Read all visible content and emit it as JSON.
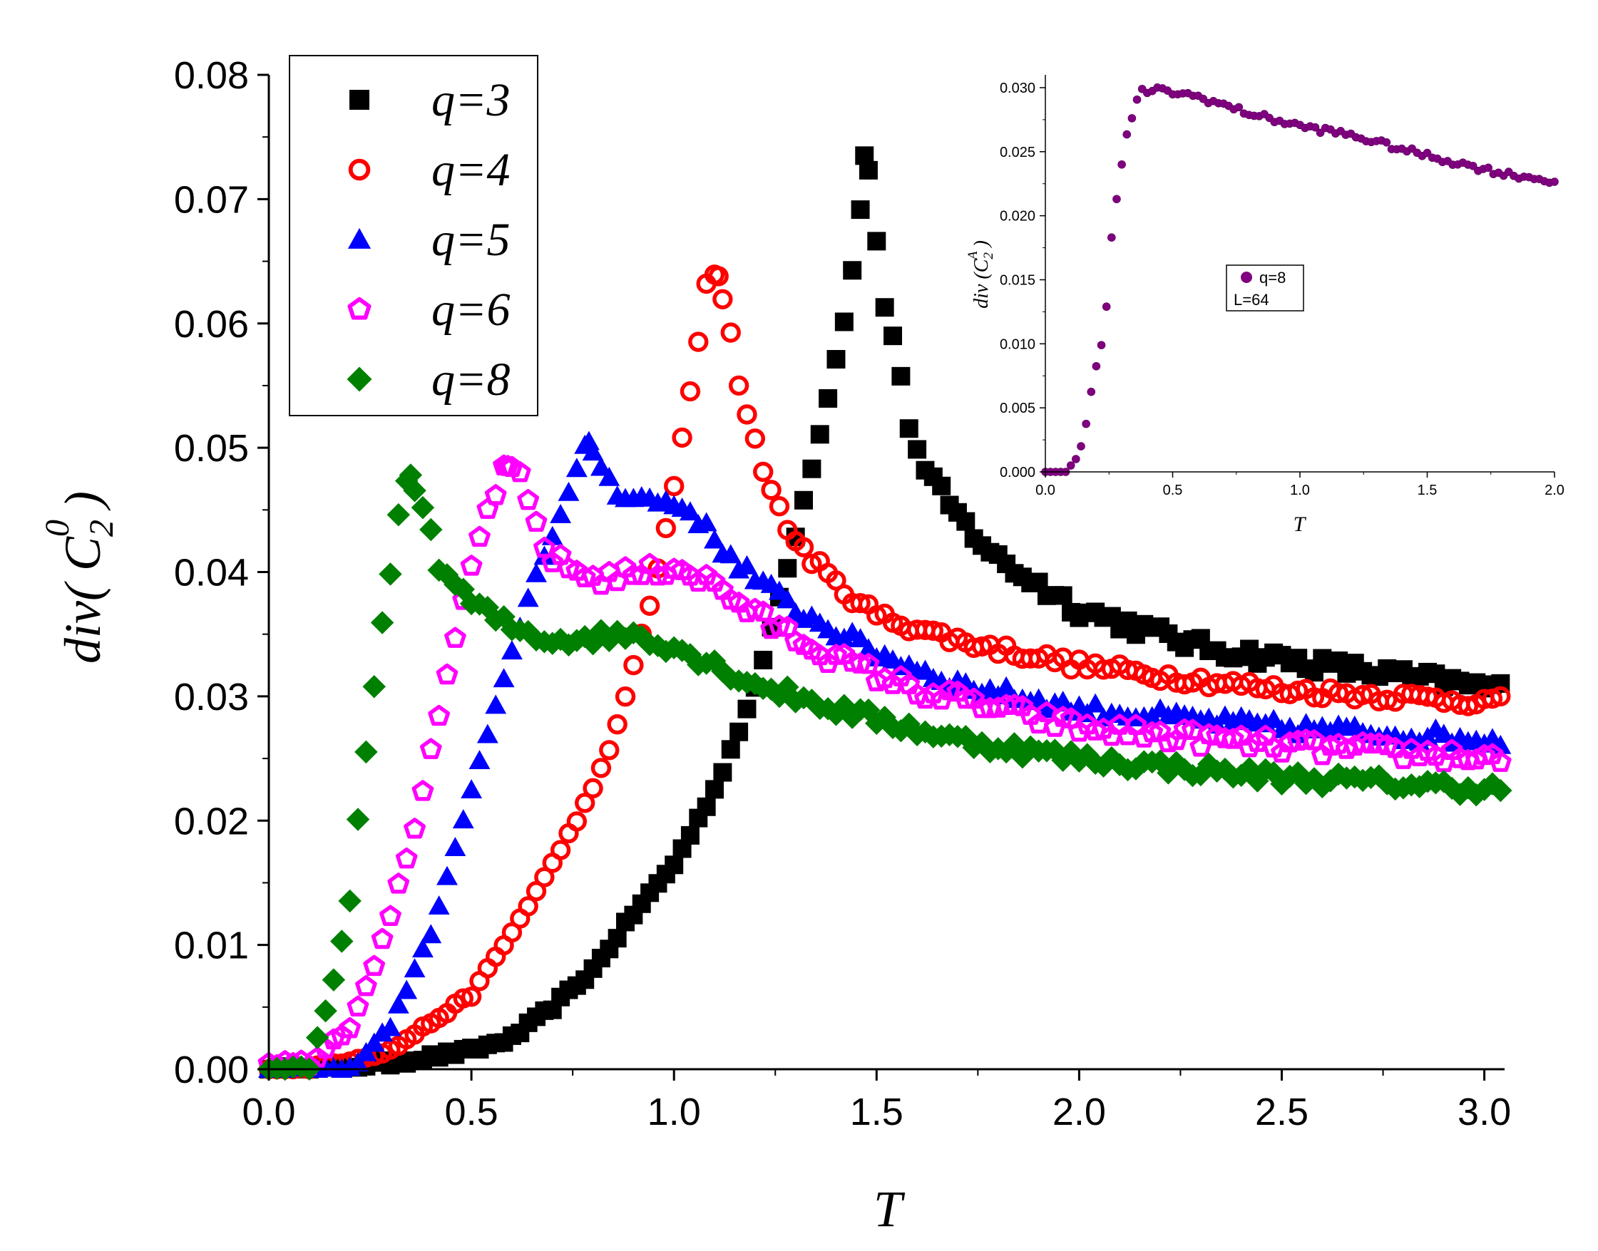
{
  "chart_data": [
    {
      "type": "scatter",
      "xlabel": "T",
      "ylabel": "div( C 2 0 )",
      "ylabel_parts": {
        "base": "div( C",
        "subscript": "2",
        "superscript": "0",
        "close": ")"
      },
      "xlim": [
        0.0,
        3.05
      ],
      "ylim": [
        0.0,
        0.08
      ],
      "xticks": [
        "0.0",
        "0.5",
        "1.0",
        "1.5",
        "2.0",
        "2.5",
        "3.0"
      ],
      "yticks": [
        "0.00",
        "0.01",
        "0.02",
        "0.03",
        "0.04",
        "0.05",
        "0.06",
        "0.07",
        "0.08"
      ],
      "legend_position": "top-left",
      "series": [
        {
          "name": "q=3",
          "label": "q=3",
          "marker": "square",
          "color": "#000000",
          "peak_x": 1.47,
          "peak_y": 0.0735,
          "left_points": [
            [
              0.0,
              0.0
            ],
            [
              0.1,
              0.0
            ],
            [
              0.3,
              0.0005
            ],
            [
              0.5,
              0.0015
            ],
            [
              0.6,
              0.0025
            ],
            [
              0.7,
              0.005
            ],
            [
              0.8,
              0.008
            ],
            [
              0.9,
              0.0125
            ],
            [
              1.0,
              0.0165
            ],
            [
              1.1,
              0.0225
            ],
            [
              1.2,
              0.0305
            ],
            [
              1.3,
              0.043
            ],
            [
              1.38,
              0.054
            ],
            [
              1.42,
              0.0605
            ],
            [
              1.45,
              0.066
            ]
          ],
          "right_points": [
            [
              1.49,
              0.0705
            ],
            [
              1.51,
              0.0625
            ],
            [
              1.54,
              0.0593
            ],
            [
              1.56,
              0.0552
            ],
            [
              1.58,
              0.052
            ],
            [
              1.62,
              0.048
            ],
            [
              1.7,
              0.0445
            ],
            [
              1.8,
              0.041
            ],
            [
              2.0,
              0.037
            ],
            [
              2.3,
              0.034
            ],
            [
              2.6,
              0.0325
            ],
            [
              3.05,
              0.0305
            ]
          ],
          "noise": 0.0007
        },
        {
          "name": "q=4",
          "label": "q=4",
          "marker": "circle",
          "color": "#ff0000",
          "peak_x": 1.11,
          "peak_y": 0.0638,
          "left_points": [
            [
              0.0,
              0.0
            ],
            [
              0.1,
              0.0
            ],
            [
              0.3,
              0.0015
            ],
            [
              0.5,
              0.006
            ],
            [
              0.6,
              0.011
            ],
            [
              0.7,
              0.0165
            ],
            [
              0.8,
              0.0225
            ],
            [
              0.85,
              0.0265
            ],
            [
              0.9,
              0.0325
            ],
            [
              0.95,
              0.0385
            ],
            [
              1.0,
              0.047
            ],
            [
              1.03,
              0.0525
            ],
            [
              1.06,
              0.0585
            ],
            [
              1.08,
              0.063
            ]
          ],
          "right_points": [
            [
              1.14,
              0.0592
            ],
            [
              1.16,
              0.0553
            ],
            [
              1.2,
              0.0505
            ],
            [
              1.25,
              0.0455
            ],
            [
              1.3,
              0.0425
            ],
            [
              1.4,
              0.039
            ],
            [
              1.5,
              0.0365
            ],
            [
              1.7,
              0.0345
            ],
            [
              2.0,
              0.0325
            ],
            [
              2.5,
              0.0305
            ],
            [
              3.05,
              0.0295
            ]
          ],
          "noise": 0.0005
        },
        {
          "name": "q=5",
          "label": "q=5",
          "marker": "triangle",
          "color": "#0000ff",
          "peak_x": 0.79,
          "peak_y": 0.0505,
          "left_points": [
            [
              0.0,
              0.0
            ],
            [
              0.2,
              0.0
            ],
            [
              0.3,
              0.0035
            ],
            [
              0.4,
              0.011
            ],
            [
              0.45,
              0.0165
            ],
            [
              0.5,
              0.0225
            ],
            [
              0.55,
              0.028
            ],
            [
              0.6,
              0.0335
            ],
            [
              0.65,
              0.039
            ],
            [
              0.7,
              0.043
            ],
            [
              0.75,
              0.047
            ]
          ],
          "right_points": [
            [
              0.85,
              0.0468
            ],
            [
              0.9,
              0.046
            ],
            [
              1.0,
              0.0455
            ],
            [
              1.05,
              0.0448
            ],
            [
              1.1,
              0.0425
            ],
            [
              1.2,
              0.0395
            ],
            [
              1.3,
              0.037
            ],
            [
              1.5,
              0.0335
            ],
            [
              1.7,
              0.031
            ],
            [
              2.0,
              0.029
            ],
            [
              2.5,
              0.0275
            ],
            [
              3.05,
              0.0265
            ]
          ],
          "noise": 0.0006
        },
        {
          "name": "q=6",
          "label": "q=6",
          "marker": "pentagon",
          "color": "#ff00ff",
          "peak_x": 0.59,
          "peak_y": 0.0485,
          "left_points": [
            [
              0.0,
              0.0005
            ],
            [
              0.1,
              0.0005
            ],
            [
              0.15,
              0.002
            ],
            [
              0.2,
              0.0035
            ],
            [
              0.25,
              0.0075
            ],
            [
              0.3,
              0.0125
            ],
            [
              0.35,
              0.018
            ],
            [
              0.4,
              0.0255
            ],
            [
              0.45,
              0.033
            ],
            [
              0.5,
              0.0405
            ],
            [
              0.55,
              0.046
            ]
          ],
          "right_points": [
            [
              0.63,
              0.047
            ],
            [
              0.65,
              0.0445
            ],
            [
              0.7,
              0.041
            ],
            [
              0.8,
              0.0395
            ],
            [
              0.95,
              0.04
            ],
            [
              1.0,
              0.0405
            ],
            [
              1.1,
              0.039
            ],
            [
              1.2,
              0.0365
            ],
            [
              1.4,
              0.033
            ],
            [
              1.6,
              0.0305
            ],
            [
              2.0,
              0.0275
            ],
            [
              2.5,
              0.026
            ],
            [
              3.05,
              0.025
            ]
          ],
          "noise": 0.0007
        },
        {
          "name": "q=8",
          "label": "q=8",
          "marker": "diamond",
          "color": "#008000",
          "peak_x": 0.35,
          "peak_y": 0.0478,
          "left_points": [
            [
              0.0,
              0.0
            ],
            [
              0.1,
              0.0
            ],
            [
              0.12,
              0.0025
            ],
            [
              0.15,
              0.0055
            ],
            [
              0.17,
              0.009
            ],
            [
              0.2,
              0.0135
            ],
            [
              0.22,
              0.02
            ],
            [
              0.25,
              0.028
            ],
            [
              0.27,
              0.0335
            ],
            [
              0.29,
              0.038
            ],
            [
              0.31,
              0.0425
            ],
            [
              0.33,
              0.0465
            ]
          ],
          "right_points": [
            [
              0.37,
              0.0465
            ],
            [
              0.39,
              0.044
            ],
            [
              0.42,
              0.0405
            ],
            [
              0.5,
              0.0375
            ],
            [
              0.6,
              0.0355
            ],
            [
              0.7,
              0.0345
            ],
            [
              0.9,
              0.035
            ],
            [
              1.0,
              0.034
            ],
            [
              1.2,
              0.031
            ],
            [
              1.4,
              0.029
            ],
            [
              1.7,
              0.0265
            ],
            [
              2.0,
              0.025
            ],
            [
              2.5,
              0.0235
            ],
            [
              3.05,
              0.0225
            ]
          ],
          "noise": 0.0006
        }
      ]
    },
    {
      "type": "scatter",
      "xlabel": "T",
      "ylabel": "div (C 2 A)",
      "ylabel_parts": {
        "base": "div (C",
        "subscript": "2",
        "superscript": "A",
        "close": ")"
      },
      "xlim": [
        0.0,
        2.0
      ],
      "ylim": [
        0.0,
        0.031
      ],
      "xticks": [
        "0.0",
        "0.5",
        "1.0",
        "1.5",
        "2.0"
      ],
      "yticks": [
        "0.000",
        "0.005",
        "0.010",
        "0.015",
        "0.020",
        "0.025",
        "0.030"
      ],
      "legend_position": "center",
      "legend_label": "q=8",
      "legend_subtext": "L=64",
      "series": [
        {
          "name": "q=8",
          "marker": "sphere",
          "color": "#800080",
          "points": [
            [
              0.0,
              0.0
            ],
            [
              0.08,
              0.0
            ],
            [
              0.1,
              0.0005
            ],
            [
              0.12,
              0.001
            ],
            [
              0.15,
              0.0025
            ],
            [
              0.17,
              0.005
            ],
            [
              0.19,
              0.0075
            ],
            [
              0.21,
              0.009
            ],
            [
              0.23,
              0.0108
            ],
            [
              0.25,
              0.015
            ],
            [
              0.26,
              0.0183
            ],
            [
              0.28,
              0.0213
            ],
            [
              0.3,
              0.024
            ],
            [
              0.32,
              0.0262
            ],
            [
              0.35,
              0.0285
            ],
            [
              0.38,
              0.0297
            ],
            [
              0.45,
              0.0298
            ],
            [
              0.6,
              0.0293
            ],
            [
              0.8,
              0.028
            ],
            [
              1.0,
              0.027
            ],
            [
              1.2,
              0.0263
            ],
            [
              1.4,
              0.0252
            ],
            [
              1.6,
              0.0242
            ],
            [
              1.8,
              0.0233
            ],
            [
              2.0,
              0.0227
            ]
          ],
          "noise": 0.00025
        }
      ]
    }
  ],
  "legend": {
    "items": [
      {
        "label": "q=3"
      },
      {
        "label": "q=4"
      },
      {
        "label": "q=5"
      },
      {
        "label": "q=6"
      },
      {
        "label": "q=8"
      }
    ]
  }
}
